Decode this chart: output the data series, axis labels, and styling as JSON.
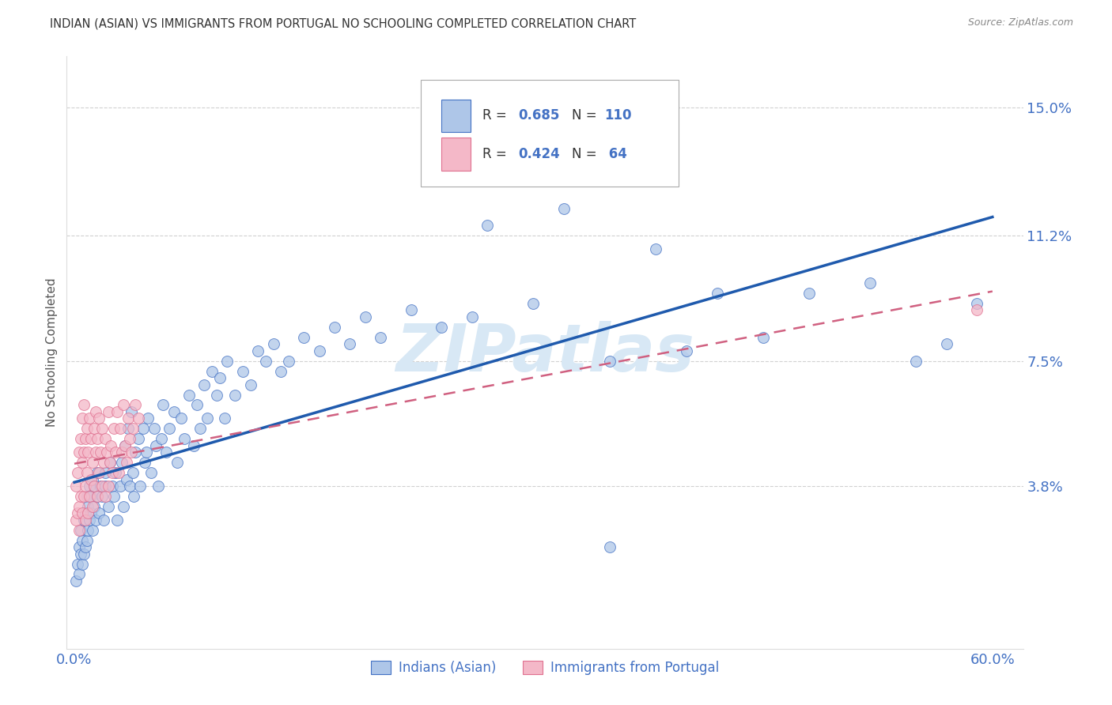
{
  "title": "INDIAN (ASIAN) VS IMMIGRANTS FROM PORTUGAL NO SCHOOLING COMPLETED CORRELATION CHART",
  "source": "Source: ZipAtlas.com",
  "ylabel": "No Schooling Completed",
  "y_tick_labels": [
    "15.0%",
    "11.2%",
    "7.5%",
    "3.8%"
  ],
  "y_tick_values": [
    0.15,
    0.112,
    0.075,
    0.038
  ],
  "xlim": [
    -0.005,
    0.62
  ],
  "ylim": [
    -0.01,
    0.165
  ],
  "legend_indian": "Indians (Asian)",
  "legend_portugal": "Immigrants from Portugal",
  "r_indian": "0.685",
  "n_indian": "110",
  "r_portugal": "0.424",
  "n_portugal": "64",
  "indian_color": "#aec6e8",
  "indian_edge_color": "#4472c4",
  "portugal_color": "#f4b8c8",
  "portugal_edge_color": "#e07090",
  "indian_line_color": "#1f5aad",
  "portugal_line_color": "#d06080",
  "watermark_color": "#d8e8f5",
  "background_color": "#ffffff",
  "grid_color": "#cccccc",
  "title_color": "#333333",
  "axis_tick_color": "#4472c4",
  "indian_scatter_x": [
    0.001,
    0.002,
    0.003,
    0.003,
    0.004,
    0.004,
    0.005,
    0.005,
    0.006,
    0.006,
    0.007,
    0.007,
    0.008,
    0.008,
    0.009,
    0.009,
    0.01,
    0.01,
    0.011,
    0.011,
    0.012,
    0.012,
    0.013,
    0.013,
    0.014,
    0.015,
    0.015,
    0.016,
    0.017,
    0.018,
    0.019,
    0.02,
    0.02,
    0.022,
    0.023,
    0.025,
    0.026,
    0.027,
    0.028,
    0.03,
    0.031,
    0.032,
    0.033,
    0.034,
    0.035,
    0.036,
    0.037,
    0.038,
    0.039,
    0.04,
    0.042,
    0.043,
    0.045,
    0.046,
    0.047,
    0.048,
    0.05,
    0.052,
    0.053,
    0.055,
    0.057,
    0.058,
    0.06,
    0.062,
    0.065,
    0.067,
    0.07,
    0.072,
    0.075,
    0.078,
    0.08,
    0.082,
    0.085,
    0.087,
    0.09,
    0.093,
    0.095,
    0.098,
    0.1,
    0.105,
    0.11,
    0.115,
    0.12,
    0.125,
    0.13,
    0.135,
    0.14,
    0.15,
    0.16,
    0.17,
    0.18,
    0.19,
    0.2,
    0.22,
    0.24,
    0.26,
    0.3,
    0.35,
    0.4,
    0.45,
    0.27,
    0.32,
    0.38,
    0.42,
    0.35,
    0.48,
    0.52,
    0.55,
    0.57,
    0.59
  ],
  "indian_scatter_y": [
    0.01,
    0.015,
    0.012,
    0.02,
    0.018,
    0.025,
    0.015,
    0.022,
    0.018,
    0.028,
    0.02,
    0.03,
    0.022,
    0.035,
    0.025,
    0.032,
    0.028,
    0.038,
    0.03,
    0.035,
    0.025,
    0.04,
    0.032,
    0.038,
    0.028,
    0.042,
    0.035,
    0.03,
    0.038,
    0.035,
    0.028,
    0.042,
    0.038,
    0.032,
    0.045,
    0.038,
    0.035,
    0.042,
    0.028,
    0.038,
    0.045,
    0.032,
    0.05,
    0.04,
    0.055,
    0.038,
    0.06,
    0.042,
    0.035,
    0.048,
    0.052,
    0.038,
    0.055,
    0.045,
    0.048,
    0.058,
    0.042,
    0.055,
    0.05,
    0.038,
    0.052,
    0.062,
    0.048,
    0.055,
    0.06,
    0.045,
    0.058,
    0.052,
    0.065,
    0.05,
    0.062,
    0.055,
    0.068,
    0.058,
    0.072,
    0.065,
    0.07,
    0.058,
    0.075,
    0.065,
    0.072,
    0.068,
    0.078,
    0.075,
    0.08,
    0.072,
    0.075,
    0.082,
    0.078,
    0.085,
    0.08,
    0.088,
    0.082,
    0.09,
    0.085,
    0.088,
    0.092,
    0.075,
    0.078,
    0.082,
    0.115,
    0.12,
    0.108,
    0.095,
    0.02,
    0.095,
    0.098,
    0.075,
    0.08,
    0.092
  ],
  "portugal_scatter_x": [
    0.001,
    0.001,
    0.002,
    0.002,
    0.003,
    0.003,
    0.003,
    0.004,
    0.004,
    0.005,
    0.005,
    0.005,
    0.006,
    0.006,
    0.006,
    0.007,
    0.007,
    0.007,
    0.008,
    0.008,
    0.009,
    0.009,
    0.01,
    0.01,
    0.011,
    0.011,
    0.012,
    0.012,
    0.013,
    0.013,
    0.014,
    0.014,
    0.015,
    0.015,
    0.016,
    0.016,
    0.017,
    0.018,
    0.018,
    0.019,
    0.02,
    0.02,
    0.021,
    0.022,
    0.022,
    0.023,
    0.024,
    0.025,
    0.026,
    0.027,
    0.028,
    0.029,
    0.03,
    0.031,
    0.032,
    0.033,
    0.034,
    0.035,
    0.036,
    0.037,
    0.038,
    0.04,
    0.042,
    0.59
  ],
  "portugal_scatter_y": [
    0.028,
    0.038,
    0.03,
    0.042,
    0.032,
    0.048,
    0.025,
    0.035,
    0.052,
    0.03,
    0.045,
    0.058,
    0.035,
    0.048,
    0.062,
    0.038,
    0.052,
    0.028,
    0.042,
    0.055,
    0.03,
    0.048,
    0.035,
    0.058,
    0.04,
    0.052,
    0.032,
    0.045,
    0.055,
    0.038,
    0.048,
    0.06,
    0.035,
    0.052,
    0.042,
    0.058,
    0.048,
    0.038,
    0.055,
    0.045,
    0.035,
    0.052,
    0.048,
    0.038,
    0.06,
    0.045,
    0.05,
    0.042,
    0.055,
    0.048,
    0.06,
    0.042,
    0.055,
    0.048,
    0.062,
    0.05,
    0.045,
    0.058,
    0.052,
    0.048,
    0.055,
    0.062,
    0.058,
    0.09
  ]
}
